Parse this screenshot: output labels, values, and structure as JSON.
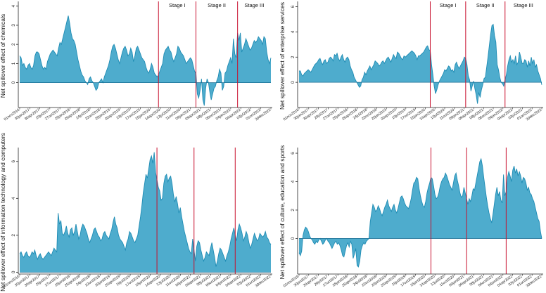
{
  "chart_data": [
    {
      "type": "area",
      "ylabel": "Net spillover effect of chemicals",
      "ylim": [
        -1.3,
        4.1
      ],
      "yticks": [
        0,
        1,
        2,
        3,
        4
      ],
      "stage_labels": [
        "Stage I",
        "Stage II",
        "Stage III"
      ],
      "stage_breaks": [
        100,
        127,
        157
      ],
      "x_tick_labels": [
        "01nov2016",
        "30jan2017",
        "30apr2017",
        "29jul2017",
        "27oct2017",
        "25jan2018",
        "25apr2018",
        "24jul2018",
        "22oct2018",
        "20jan2019",
        "20apr2019",
        "19jul2019",
        "17oct2019",
        "15jan2020",
        "14apr2020",
        "13jul2020",
        "11oct2020",
        "09jan2021",
        "09apr2021",
        "08jul2021",
        "06oct2021",
        "04jan2022",
        "04apr2022",
        "03jul2022",
        "01oct2022",
        "30dec2022"
      ],
      "series": [
        {
          "name": "chemicals",
          "values": [
            1.4,
            1.3,
            0.9,
            1.0,
            0.8,
            0.7,
            0.9,
            1.0,
            0.8,
            0.7,
            0.9,
            1.4,
            1.6,
            1.6,
            1.5,
            1.2,
            0.9,
            0.7,
            0.8,
            0.7,
            1.1,
            1.3,
            1.5,
            1.6,
            1.7,
            1.6,
            1.5,
            1.4,
            1.8,
            2.1,
            2.0,
            2.3,
            2.6,
            2.9,
            3.2,
            3.5,
            3.1,
            2.6,
            2.3,
            2.2,
            2.0,
            1.6,
            1.2,
            0.9,
            0.6,
            0.4,
            0.3,
            0.1,
            0.0,
            -0.1,
            0.2,
            0.3,
            0.1,
            0.0,
            -0.2,
            -0.4,
            -0.3,
            0.0,
            0.1,
            0.2,
            0.0,
            0.3,
            0.5,
            0.7,
            0.9,
            1.2,
            1.6,
            1.9,
            2.0,
            1.8,
            1.5,
            1.2,
            1.0,
            1.3,
            1.6,
            1.8,
            1.9,
            1.7,
            1.4,
            1.5,
            1.8,
            1.6,
            1.1,
            1.4,
            1.8,
            1.9,
            1.7,
            1.5,
            1.3,
            1.2,
            1.1,
            0.8,
            0.6,
            0.5,
            0.7,
            1.0,
            0.8,
            0.5,
            0.4,
            0.3,
            0.4,
            0.6,
            0.8,
            1.0,
            1.5,
            1.7,
            1.8,
            1.9,
            1.7,
            1.6,
            1.3,
            1.1,
            1.3,
            1.5,
            1.9,
            1.8,
            1.6,
            1.5,
            1.4,
            1.2,
            1.0,
            1.1,
            1.2,
            1.3,
            1.2,
            0.9,
            0.6,
            0.5,
            -0.6,
            -0.8,
            -0.4,
            0.2,
            -0.9,
            -1.2,
            -0.3,
            0.2,
            0.0,
            -0.5,
            -0.9,
            -0.6,
            -0.3,
            -0.2,
            0.1,
            0.3,
            0.7,
            0.5,
            -0.4,
            -0.2,
            0.5,
            0.6,
            0.9,
            1.1,
            1.3,
            1.0,
            2.3,
            1.5,
            1.3,
            2.6,
            2.2,
            2.6,
            1.6,
            1.8,
            2.0,
            2.3,
            2.1,
            1.9,
            1.7,
            1.8,
            2.0,
            2.2,
            2.1,
            2.2,
            2.4,
            2.3,
            2.2,
            2.0,
            2.4,
            2.3,
            1.6,
            1.2,
            1.0,
            1.3
          ]
        }
      ]
    },
    {
      "type": "area",
      "ylabel": "Net spillover effect of enterprise services",
      "ylim": [
        -2.0,
        6.2
      ],
      "yticks": [
        0,
        2,
        4,
        6
      ],
      "stage_labels": [
        "Stage I",
        "Stage II",
        "Stage III"
      ],
      "stage_breaks": [
        100,
        127,
        157
      ],
      "x_tick_labels": [
        "01nov2016",
        "30jan2017",
        "30apr2017",
        "29jul2017",
        "27oct2017",
        "25jan2018",
        "25apr2018",
        "24jul2018",
        "22oct2018",
        "20jan2019",
        "20apr2019",
        "19jul2019",
        "17oct2019",
        "15jan2020",
        "14apr2020",
        "13jul2020",
        "11oct2020",
        "09jan2021",
        "09apr2021",
        "08jul2021",
        "06oct2021",
        "04jan2022",
        "04apr2022",
        "03jul2022",
        "01oct2022",
        "30dec2022"
      ],
      "series": [
        {
          "name": "enterprise services",
          "values": [
            0.9,
            0.9,
            0.6,
            0.5,
            0.7,
            0.8,
            0.9,
            1.0,
            0.9,
            0.8,
            1.0,
            1.2,
            1.4,
            1.5,
            1.6,
            1.8,
            1.9,
            1.6,
            1.4,
            1.7,
            1.8,
            1.5,
            1.6,
            1.9,
            2.0,
            1.9,
            1.7,
            2.2,
            2.1,
            2.3,
            1.9,
            1.7,
            2.0,
            2.2,
            1.8,
            1.6,
            1.9,
            2.0,
            1.8,
            1.3,
            1.0,
            0.8,
            0.4,
            0.2,
            0.0,
            -0.2,
            -0.4,
            -0.3,
            0.2,
            0.4,
            0.8,
            0.6,
            0.9,
            1.1,
            1.3,
            1.0,
            1.2,
            1.4,
            1.7,
            1.6,
            1.5,
            1.3,
            1.4,
            1.6,
            1.7,
            1.5,
            1.7,
            1.9,
            2.0,
            1.8,
            1.6,
            1.9,
            2.2,
            2.0,
            1.9,
            2.4,
            2.3,
            2.1,
            1.9,
            1.8,
            2.1,
            2.0,
            2.1,
            2.2,
            2.3,
            2.4,
            2.5,
            2.4,
            2.3,
            2.1,
            1.8,
            2.1,
            2.1,
            2.2,
            2.3,
            2.4,
            2.6,
            2.8,
            2.9,
            2.6,
            2.5,
            1.4,
            0.6,
            -0.3,
            -0.9,
            -0.6,
            -0.2,
            0.1,
            0.3,
            0.5,
            0.7,
            1.0,
            0.9,
            1.1,
            1.3,
            1.2,
            0.9,
            1.0,
            0.8,
            1.4,
            1.6,
            1.3,
            1.1,
            1.3,
            1.5,
            1.7,
            2.0,
            1.9,
            1.4,
            0.5,
            0.2,
            -0.7,
            -0.3,
            0.1,
            -0.5,
            -1.0,
            -1.7,
            -0.8,
            -1.2,
            -0.6,
            -0.2,
            0.3,
            0.4,
            1.2,
            2.0,
            2.9,
            3.8,
            4.5,
            4.6,
            3.7,
            3.2,
            1.4,
            1.0,
            0.4,
            0.0,
            -0.1,
            -0.3,
            0.2,
            0.6,
            1.3,
            1.8,
            2.1,
            1.6,
            1.8,
            1.5,
            2.1,
            1.4,
            1.6,
            2.4,
            2.0,
            1.5,
            1.5,
            1.8,
            1.7,
            1.2,
            1.7,
            1.3,
            2.0,
            1.5,
            1.8,
            1.2,
            1.4,
            0.9,
            0.6,
            0.3,
            -0.2
          ]
        }
      ]
    },
    {
      "type": "area",
      "ylabel": "Net spillover effect of information technology and computers",
      "ylim": [
        -0.1,
        6.6
      ],
      "yticks": [
        0,
        2,
        4,
        6
      ],
      "x_tick_labels": [
        "01nov2016",
        "30jan2017",
        "30apr2017",
        "29jul2017",
        "27oct2017",
        "25jan2018",
        "25apr2018",
        "24jul2018",
        "22oct2018",
        "20jan2019",
        "20apr2019",
        "19jul2019",
        "17oct2019",
        "15jan2020",
        "14apr2020",
        "13jul2020",
        "11oct2020",
        "09jan2021",
        "09apr2021",
        "08jul2021",
        "06oct2021",
        "04jan2022",
        "04apr2022",
        "03jul2022",
        "01oct2022",
        "30dec2022"
      ],
      "stage_breaks": [
        100,
        127,
        157
      ],
      "series": [
        {
          "name": "information technology and computers",
          "values": [
            1.0,
            1.1,
            0.9,
            0.8,
            1.0,
            1.1,
            0.9,
            0.8,
            0.9,
            1.1,
            1.0,
            1.2,
            0.9,
            0.7,
            0.9,
            1.0,
            0.8,
            0.7,
            0.8,
            0.9,
            1.0,
            1.1,
            1.0,
            0.9,
            1.1,
            1.3,
            1.2,
            1.1,
            3.2,
            2.6,
            2.8,
            2.1,
            2.0,
            2.2,
            2.5,
            2.1,
            1.9,
            2.3,
            2.4,
            2.0,
            2.2,
            2.6,
            2.2,
            1.8,
            2.0,
            2.4,
            2.6,
            2.5,
            2.3,
            2.1,
            1.8,
            1.6,
            1.8,
            2.0,
            2.3,
            2.4,
            2.2,
            2.0,
            1.9,
            1.7,
            1.8,
            2.1,
            2.2,
            2.0,
            1.9,
            1.8,
            2.1,
            2.3,
            2.7,
            3.0,
            2.6,
            2.4,
            2.0,
            1.8,
            1.7,
            1.6,
            1.4,
            1.2,
            1.6,
            1.8,
            2.2,
            2.1,
            1.9,
            1.7,
            1.6,
            1.8,
            2.0,
            2.5,
            3.0,
            3.6,
            4.3,
            4.8,
            5.3,
            5.1,
            5.6,
            6.1,
            6.3,
            5.9,
            6.5,
            5.4,
            5.0,
            4.6,
            4.4,
            3.9,
            4.0,
            4.8,
            5.2,
            5.3,
            4.9,
            5.1,
            5.2,
            4.8,
            4.2,
            3.8,
            4.1,
            3.7,
            3.2,
            3.5,
            3.0,
            2.6,
            2.2,
            1.9,
            1.6,
            1.3,
            1.1,
            1.0,
            1.8,
            1.2,
            0.6,
            1.4,
            1.7,
            1.6,
            1.2,
            0.9,
            0.6,
            0.8,
            1.1,
            1.0,
            0.9,
            1.3,
            1.6,
            1.2,
            0.8,
            0.3,
            0.6,
            1.0,
            1.3,
            1.2,
            1.0,
            0.8,
            0.6,
            0.9,
            1.1,
            1.4,
            1.8,
            2.1,
            2.4,
            2.0,
            1.7,
            2.3,
            2.6,
            2.4,
            2.1,
            1.7,
            1.9,
            2.2,
            2.0,
            1.6,
            1.3,
            1.5,
            1.8,
            2.1,
            1.9,
            1.7,
            1.8,
            2.1,
            2.0,
            1.9,
            2.0,
            2.2,
            1.9,
            1.8,
            1.6,
            1.5
          ]
        }
      ]
    },
    {
      "type": "area",
      "ylabel": "Net spillover effect of culture, education and sports",
      "ylim": [
        -2.5,
        6.2
      ],
      "yticks": [
        0,
        2,
        4,
        6
      ],
      "x_tick_labels": [
        "01nov2016",
        "30jan2017",
        "30apr2017",
        "29jul2017",
        "27oct2017",
        "25jan2018",
        "25apr2018",
        "24jul2018",
        "22oct2018",
        "20jan2019",
        "20apr2019",
        "19jul2019",
        "17oct2019",
        "15jan2020",
        "14apr2020",
        "13jul2020",
        "11oct2020",
        "09jan2021",
        "09apr2021",
        "08jul2021",
        "06oct2021",
        "04jan2022",
        "04apr2022",
        "03jul2022",
        "01oct2022",
        "30dec2022"
      ],
      "stage_breaks": [
        100,
        127,
        157
      ],
      "series": [
        {
          "name": "culture, education and sports",
          "values": [
            -1.0,
            -1.2,
            -0.9,
            0.2,
            0.6,
            0.8,
            0.7,
            0.5,
            0.2,
            0.0,
            -0.1,
            -0.3,
            -0.4,
            -0.2,
            -0.3,
            -0.1,
            0.0,
            -0.2,
            -0.4,
            -0.3,
            -0.1,
            0.0,
            -0.2,
            -0.3,
            -0.5,
            -0.7,
            -0.5,
            -0.3,
            -0.2,
            -0.4,
            -0.3,
            -0.5,
            -0.8,
            -1.2,
            -1.3,
            -0.9,
            -0.5,
            -0.3,
            -0.6,
            -0.2,
            -0.4,
            -1.4,
            -1.1,
            -0.7,
            -1.9,
            -2.0,
            -1.6,
            -0.8,
            -0.5,
            -0.3,
            -0.4,
            -0.2,
            -0.1,
            0.0,
            1.2,
            1.8,
            2.4,
            2.2,
            1.9,
            2.0,
            2.3,
            2.1,
            1.8,
            1.6,
            1.9,
            2.2,
            2.4,
            2.7,
            2.3,
            2.1,
            1.9,
            2.2,
            2.4,
            2.0,
            1.8,
            2.1,
            2.5,
            2.9,
            3.0,
            2.8,
            2.5,
            2.3,
            2.2,
            2.1,
            2.4,
            2.8,
            3.4,
            3.9,
            4.0,
            4.3,
            4.2,
            3.5,
            3.0,
            2.6,
            2.3,
            2.2,
            2.6,
            3.2,
            3.6,
            3.9,
            4.3,
            4.2,
            3.7,
            3.1,
            2.8,
            2.9,
            3.2,
            3.7,
            4.0,
            4.2,
            4.3,
            4.6,
            4.4,
            4.1,
            3.8,
            3.6,
            3.4,
            3.9,
            4.4,
            4.6,
            4.1,
            3.7,
            3.2,
            2.9,
            3.0,
            3.6,
            3.2,
            2.8,
            2.4,
            2.8,
            2.6,
            3.0,
            3.5,
            3.4,
            3.9,
            4.4,
            4.9,
            5.4,
            5.6,
            5.1,
            4.3,
            3.6,
            2.9,
            2.3,
            1.8,
            1.4,
            1.1,
            1.7,
            2.4,
            3.1,
            3.6,
            3.0,
            3.3,
            2.7,
            2.5,
            4.5,
            3.0,
            3.3,
            4.3,
            4.7,
            4.4,
            4.0,
            4.8,
            5.1,
            4.6,
            4.9,
            4.4,
            4.7,
            4.4,
            3.9,
            4.3,
            4.2,
            3.9,
            3.4,
            3.6,
            3.2,
            3.1,
            2.8,
            2.6,
            2.2,
            1.8,
            1.4,
            1.2,
            0.5,
            0.0
          ]
        }
      ]
    }
  ]
}
